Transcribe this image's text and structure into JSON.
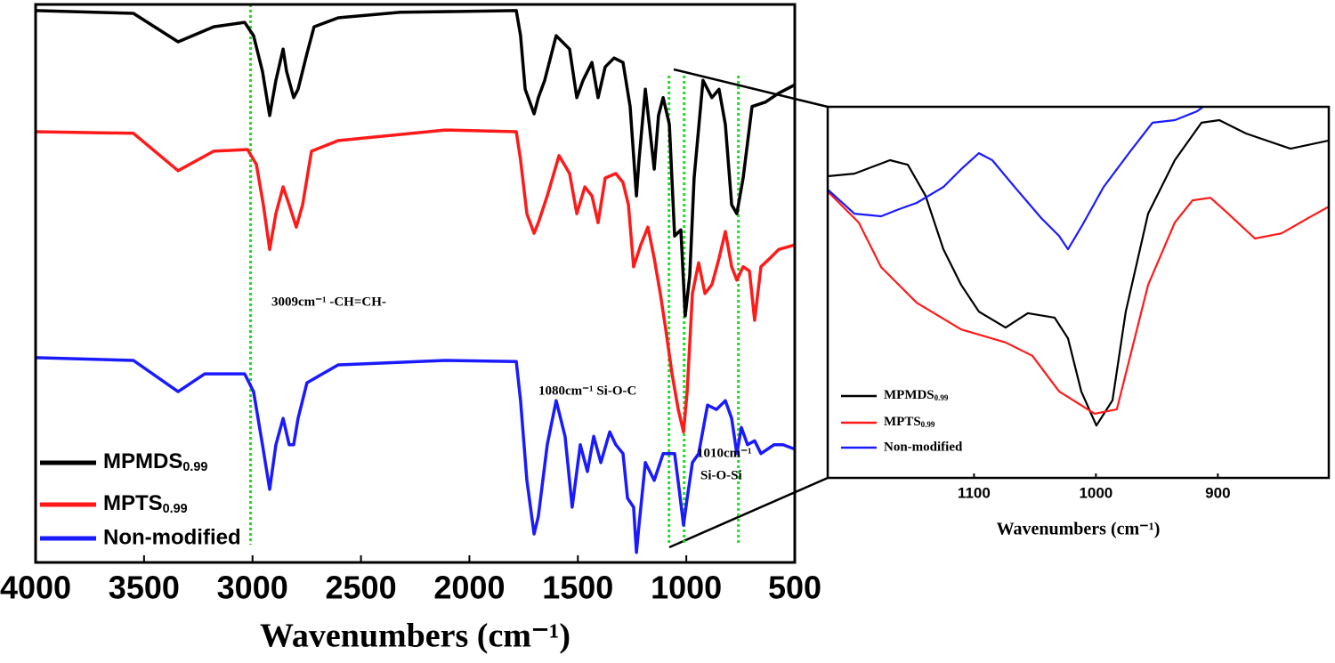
{
  "chart_data": [
    {
      "type": "line",
      "xlabel": "Wavenumbers (cm⁻¹)",
      "xlim": [
        4000,
        500
      ],
      "xticks": [
        4000,
        3500,
        3000,
        2500,
        2000,
        1500,
        1000,
        500
      ],
      "ylim": [
        0,
        100
      ],
      "vlines": [
        3009,
        1080,
        1010,
        760
      ],
      "vline_color": "#22dd22",
      "annotations": [
        "3009cm⁻¹ -CH=CH-",
        "1080cm⁻¹ Si-O-C",
        "1010cm⁻¹",
        "Si-O-Si"
      ],
      "legend": "lower left",
      "series": [
        {
          "name": "MPMDS0.99",
          "color": "#000000",
          "x": [
            4000,
            3549,
            3343,
            3179,
            3036,
            2995,
            2954,
            2921,
            2892,
            2859,
            2843,
            2810,
            2790,
            2749,
            2716,
            2605,
            2318,
            1784,
            1764,
            1743,
            1702,
            1682,
            1653,
            1600,
            1538,
            1505,
            1476,
            1435,
            1407,
            1374,
            1333,
            1292,
            1259,
            1230,
            1218,
            1189,
            1148,
            1128,
            1107,
            1078,
            1054,
            1025,
            1005,
            984,
            964,
            923,
            882,
            849,
            820,
            791,
            767,
            738,
            697,
            635,
            574,
            500
          ],
          "values": [
            98.9,
            98.4,
            93.3,
            96.0,
            96.8,
            94.4,
            88.0,
            80.1,
            86.4,
            92.0,
            88.0,
            83.3,
            84.8,
            91.2,
            96.0,
            97.6,
            98.6,
            98.9,
            94.4,
            84.8,
            80.4,
            83.3,
            86.4,
            94.4,
            92.0,
            83.3,
            86.4,
            89.6,
            83.3,
            88.8,
            90.4,
            89.6,
            81.7,
            65.7,
            72.1,
            84.8,
            70.5,
            80.1,
            83.3,
            78.5,
            58.5,
            59.6,
            44.2,
            51.4,
            68.9,
            86.4,
            83.3,
            84.8,
            78.5,
            64.1,
            62.5,
            68.9,
            81.7,
            82.5,
            84.1,
            85.6
          ]
        },
        {
          "name": "MPTS0.99",
          "color": "#ff1a1a",
          "x": [
            4000,
            3549,
            3343,
            3179,
            3023,
            2982,
            2950,
            2921,
            2892,
            2859,
            2831,
            2798,
            2769,
            2728,
            2605,
            2112,
            1784,
            1764,
            1735,
            1702,
            1682,
            1641,
            1587,
            1538,
            1505,
            1468,
            1435,
            1407,
            1374,
            1325,
            1292,
            1267,
            1243,
            1210,
            1177,
            1148,
            1120,
            1095,
            1066,
            1037,
            1013,
            996,
            972,
            943,
            914,
            882,
            849,
            820,
            791,
            767,
            738,
            709,
            685,
            656,
            615,
            574,
            500
          ],
          "values": [
            77.2,
            76.9,
            70.2,
            73.7,
            74.0,
            71.3,
            64.1,
            56.1,
            62.5,
            67.3,
            64.1,
            60.1,
            64.1,
            73.7,
            75.6,
            77.5,
            77.2,
            72.1,
            62.5,
            59.0,
            60.9,
            65.7,
            72.9,
            69.7,
            62.5,
            67.3,
            65.7,
            60.9,
            68.9,
            69.7,
            68.1,
            64.1,
            53.0,
            56.9,
            60.1,
            54.5,
            48.2,
            41.8,
            33.8,
            27.4,
            23.4,
            30.6,
            48.2,
            53.7,
            48.2,
            49.8,
            54.5,
            59.3,
            53.0,
            50.6,
            53.0,
            52.2,
            43.4,
            53.0,
            54.5,
            56.1,
            56.9
          ]
        },
        {
          "name": "Non-modified",
          "color": "#1a1aff",
          "x": [
            4000,
            3549,
            3343,
            3220,
            3036,
            2995,
            2954,
            2921,
            2892,
            2859,
            2831,
            2810,
            2790,
            2749,
            2605,
            2112,
            1784,
            1764,
            1735,
            1702,
            1682,
            1641,
            1600,
            1559,
            1526,
            1489,
            1456,
            1427,
            1394,
            1353,
            1325,
            1292,
            1271,
            1243,
            1230,
            1218,
            1189,
            1148,
            1107,
            1078,
            1054,
            1033,
            1013,
            996,
            972,
            943,
            902,
            861,
            820,
            791,
            767,
            746,
            718,
            685,
            656,
            595,
            554,
            500
          ],
          "values": [
            36.7,
            36.2,
            30.6,
            33.8,
            33.8,
            30.6,
            21.1,
            13.1,
            21.1,
            25.8,
            21.1,
            21.1,
            25.8,
            32.2,
            35.4,
            36.2,
            36.0,
            29.0,
            14.7,
            5.1,
            8.3,
            21.1,
            29.0,
            22.6,
            9.9,
            21.1,
            16.3,
            22.6,
            17.9,
            23.4,
            21.1,
            19.5,
            11.5,
            9.9,
            1.8,
            6.7,
            17.9,
            14.7,
            19.5,
            19.5,
            19.5,
            13.1,
            6.7,
            11.5,
            17.9,
            19.5,
            28.2,
            27.4,
            29.0,
            25.8,
            19.5,
            24.2,
            21.1,
            21.8,
            19.5,
            21.1,
            21.1,
            20.3
          ]
        }
      ]
    },
    {
      "type": "line",
      "xlabel": "Wavenumbers (cm⁻¹)",
      "xlim": [
        1220,
        809
      ],
      "xticks": [
        1100,
        1000,
        900
      ],
      "ylim": [
        0,
        100
      ],
      "legend": "lower left",
      "series": [
        {
          "name": "MPMDS0.99",
          "color": "#000000",
          "x": [
            1220,
            1198.1,
            1168.9,
            1154.3,
            1139.7,
            1125.1,
            1110.5,
            1096.0,
            1074.1,
            1055.8,
            1033.9,
            1022.9,
            1012.0,
            999.6,
            986.4,
            975.5,
            957.2,
            935.3,
            913.4,
            898.8,
            876.9,
            840.4,
            809
          ],
          "values": [
            81.3,
            82.0,
            85.6,
            84.4,
            76.0,
            61.6,
            52.0,
            44.8,
            40.5,
            44.4,
            43.2,
            37.6,
            23.3,
            14.1,
            20.9,
            44.8,
            71.2,
            85.6,
            95.7,
            96.4,
            92.8,
            88.7,
            90.9
          ]
        },
        {
          "name": "MPTS0.99",
          "color": "#ff1a1a",
          "x": [
            1220,
            1194.5,
            1176.2,
            1147.0,
            1110.5,
            1074.1,
            1052.1,
            1030.2,
            1001.0,
            982.8,
            971.8,
            957.2,
            935.3,
            920.7,
            906.1,
            891.5,
            869.6,
            847.7,
            825.9,
            809
          ],
          "values": [
            77.2,
            68.8,
            56.8,
            47.2,
            40.0,
            36.5,
            32.9,
            23.3,
            17.3,
            18.5,
            32.9,
            52.0,
            68.8,
            74.8,
            75.5,
            71.2,
            64.5,
            65.9,
            70.0,
            73.1
          ]
        },
        {
          "name": "Non-modified",
          "color": "#1a1aff",
          "x": [
            1220,
            1198.1,
            1176.2,
            1161.6,
            1147.0,
            1125.1,
            1110.5,
            1096.0,
            1085.0,
            1066.7,
            1044.8,
            1030.2,
            1022.9,
            1012.0,
            993.7,
            971.8,
            953.6,
            935.3,
            917.0,
            912.0
          ],
          "values": [
            77.7,
            71.2,
            70.5,
            72.4,
            74.1,
            78.4,
            83.2,
            87.5,
            85.6,
            78.4,
            70.0,
            65.2,
            61.6,
            67.6,
            78.4,
            88.0,
            95.7,
            96.4,
            98.8,
            100
          ]
        }
      ]
    }
  ]
}
